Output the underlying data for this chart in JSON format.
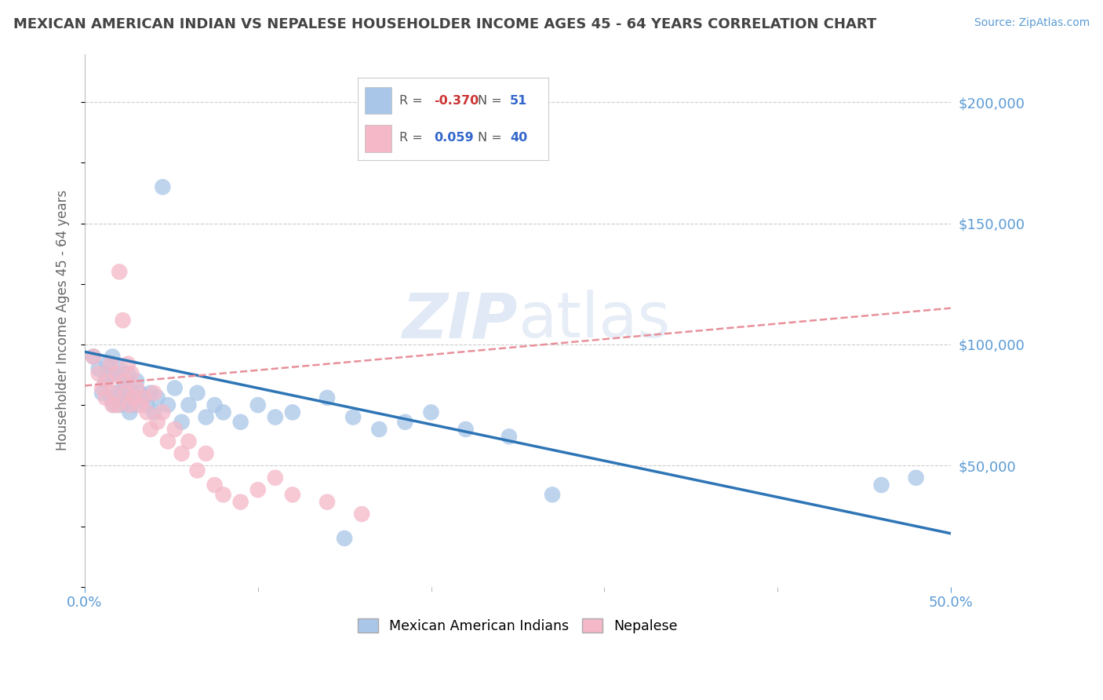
{
  "title": "MEXICAN AMERICAN INDIAN VS NEPALESE HOUSEHOLDER INCOME AGES 45 - 64 YEARS CORRELATION CHART",
  "source": "Source: ZipAtlas.com",
  "ylabel": "Householder Income Ages 45 - 64 years",
  "xlim": [
    0.0,
    0.5
  ],
  "ylim": [
    0,
    220000
  ],
  "yticks": [
    0,
    50000,
    100000,
    150000,
    200000
  ],
  "ytick_labels": [
    "",
    "$50,000",
    "$100,000",
    "$150,000",
    "$200,000"
  ],
  "xtick_major": [
    0.0,
    0.5
  ],
  "xtick_minor": [
    0.1,
    0.2,
    0.3,
    0.4
  ],
  "xtick_major_labels": [
    "0.0%",
    "50.0%"
  ],
  "title_color": "#444444",
  "tick_color": "#5b9bd5",
  "legend_r_blue": "-0.370",
  "legend_n_blue": "51",
  "legend_r_pink": "0.059",
  "legend_n_pink": "40",
  "blue_scatter_x": [
    0.005,
    0.008,
    0.01,
    0.012,
    0.013,
    0.014,
    0.015,
    0.016,
    0.017,
    0.018,
    0.019,
    0.02,
    0.021,
    0.022,
    0.023,
    0.024,
    0.025,
    0.026,
    0.027,
    0.028,
    0.03,
    0.032,
    0.034,
    0.036,
    0.038,
    0.04,
    0.042,
    0.045,
    0.048,
    0.052,
    0.056,
    0.06,
    0.065,
    0.07,
    0.075,
    0.08,
    0.09,
    0.1,
    0.11,
    0.12,
    0.14,
    0.155,
    0.17,
    0.185,
    0.2,
    0.22,
    0.245,
    0.27,
    0.15,
    0.46,
    0.48
  ],
  "blue_scatter_y": [
    95000,
    90000,
    80000,
    85000,
    92000,
    88000,
    78000,
    95000,
    75000,
    88000,
    80000,
    90000,
    75000,
    82000,
    78000,
    85000,
    88000,
    72000,
    80000,
    75000,
    85000,
    80000,
    78000,
    75000,
    80000,
    72000,
    78000,
    165000,
    75000,
    82000,
    68000,
    75000,
    80000,
    70000,
    75000,
    72000,
    68000,
    75000,
    70000,
    72000,
    78000,
    70000,
    65000,
    68000,
    72000,
    65000,
    62000,
    38000,
    20000,
    42000,
    45000
  ],
  "pink_scatter_x": [
    0.005,
    0.008,
    0.01,
    0.012,
    0.013,
    0.015,
    0.016,
    0.017,
    0.018,
    0.019,
    0.02,
    0.022,
    0.023,
    0.024,
    0.025,
    0.026,
    0.027,
    0.028,
    0.03,
    0.032,
    0.034,
    0.036,
    0.038,
    0.04,
    0.042,
    0.045,
    0.048,
    0.052,
    0.056,
    0.06,
    0.065,
    0.07,
    0.075,
    0.08,
    0.09,
    0.1,
    0.11,
    0.12,
    0.14,
    0.16
  ],
  "pink_scatter_y": [
    95000,
    88000,
    82000,
    78000,
    85000,
    92000,
    75000,
    80000,
    88000,
    75000,
    130000,
    110000,
    85000,
    80000,
    92000,
    75000,
    88000,
    78000,
    82000,
    75000,
    78000,
    72000,
    65000,
    80000,
    68000,
    72000,
    60000,
    65000,
    55000,
    60000,
    48000,
    55000,
    42000,
    38000,
    35000,
    40000,
    45000,
    38000,
    35000,
    30000
  ],
  "blue_line_x": [
    0.0,
    0.5
  ],
  "blue_line_y": [
    97000,
    22000
  ],
  "pink_line_x": [
    0.0,
    0.5
  ],
  "pink_line_y": [
    83000,
    115000
  ],
  "blue_line_color": "#2e75b6",
  "pink_line_color": "#e8909a",
  "blue_scatter_color": "#a9c6e8",
  "pink_scatter_color": "#f4b8c8",
  "background_color": "#ffffff",
  "grid_color": "#cccccc"
}
